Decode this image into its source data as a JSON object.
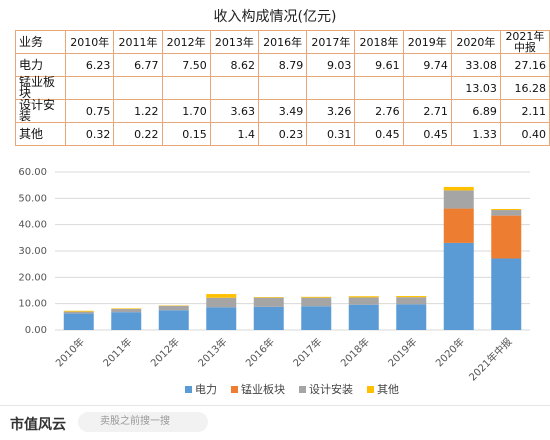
{
  "title": "收入构成情况(亿元)",
  "table": {
    "header": [
      "业务",
      "2010年",
      "2011年",
      "2012年",
      "2013年",
      "2016年",
      "2017年",
      "2018年",
      "2019年",
      "2020年",
      "2021年\n中报"
    ],
    "rows": [
      [
        "电力",
        "6.23",
        "6.77",
        "7.50",
        "8.62",
        "8.79",
        "9.03",
        "9.61",
        "9.74",
        "33.08",
        "27.16"
      ],
      [
        "锰业板块",
        null,
        null,
        null,
        null,
        null,
        null,
        null,
        null,
        "13.03",
        "16.28"
      ],
      [
        "设计安装",
        "0.75",
        "1.22",
        "1.70",
        "3.63",
        "3.49",
        "3.26",
        "2.76",
        "2.71",
        "6.89",
        "2.11"
      ],
      [
        "其他",
        "0.32",
        "0.22",
        "0.15",
        "1.4",
        "0.23",
        "0.31",
        "0.45",
        "0.45",
        "1.33",
        "0.40"
      ]
    ]
  },
  "chart_data": {
    "type": "stacked_bar",
    "categories": [
      "2010年",
      "2011年",
      "2012年",
      "2013年",
      "2016年",
      "2017年",
      "2018年",
      "2019年",
      "2020年",
      "2021年中报"
    ],
    "series": [
      {
        "name": "电力",
        "color": "#5b9bd5",
        "values": [
          6.23,
          6.77,
          7.5,
          8.62,
          8.79,
          9.03,
          9.61,
          9.74,
          33.08,
          27.16
        ]
      },
      {
        "name": "锰业板块",
        "color": "#ed7d31",
        "values": [
          null,
          null,
          null,
          null,
          null,
          null,
          null,
          null,
          13.03,
          16.28
        ]
      },
      {
        "name": "设计安装",
        "color": "#a5a5a5",
        "values": [
          0.75,
          1.22,
          1.7,
          3.63,
          3.49,
          3.26,
          2.76,
          2.71,
          6.89,
          2.11
        ]
      },
      {
        "name": "其他",
        "color": "#ffc000",
        "values": [
          0.32,
          0.22,
          0.15,
          1.4,
          0.23,
          0.31,
          0.45,
          0.45,
          1.33,
          0.4
        ]
      }
    ],
    "ylim": [
      0,
      60
    ],
    "yticks": [
      {
        "value": 0,
        "label": "0.00"
      },
      {
        "value": 10,
        "label": "10.00"
      },
      {
        "value": 20,
        "label": "20.00"
      },
      {
        "value": 30,
        "label": "30.00"
      },
      {
        "value": 40,
        "label": "40.00"
      },
      {
        "value": 50,
        "label": "50.00"
      },
      {
        "value": 60,
        "label": "60.00"
      }
    ],
    "grid": true,
    "legend": "bottom"
  },
  "footer": {
    "brand": "市值风云",
    "search": "卖股之前搜一搜"
  }
}
